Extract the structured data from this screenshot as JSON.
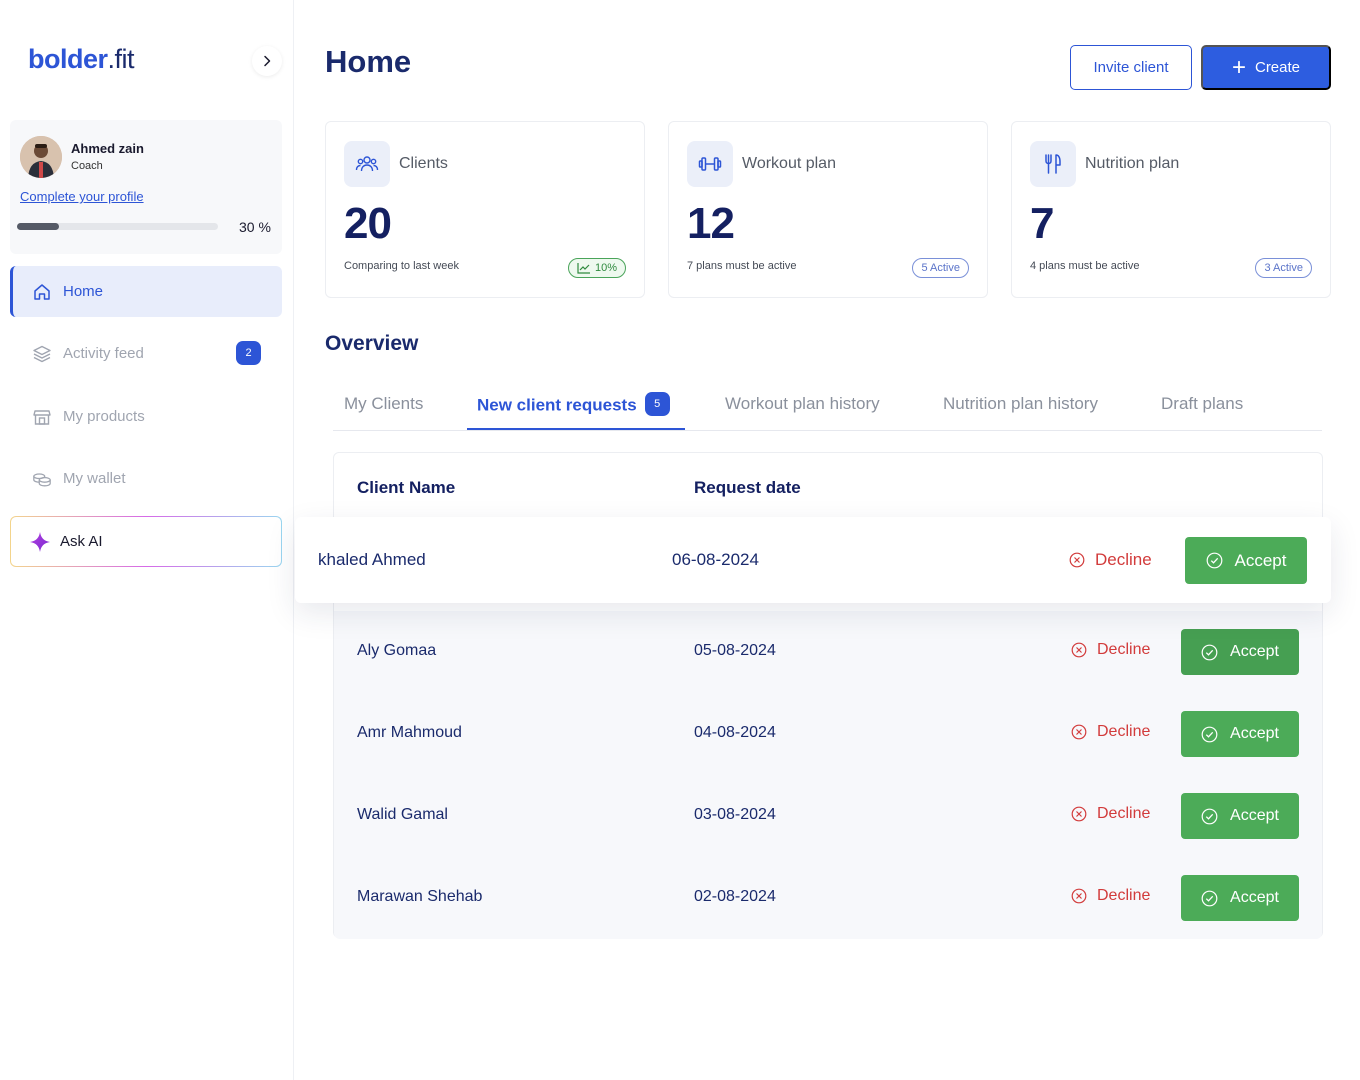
{
  "brand": {
    "name_bold": "bolder",
    "name_rest": ".fit"
  },
  "profile": {
    "name": "Ahmed zain",
    "role": "Coach",
    "complete_link": "Complete your profile",
    "progress_percent": 30,
    "progress_text": "30 %"
  },
  "sidebar": {
    "items": [
      {
        "label": "Home",
        "icon": "home-icon",
        "active": true
      },
      {
        "label": "Activity feed",
        "icon": "layers-icon",
        "badge": "2"
      },
      {
        "label": "My products",
        "icon": "store-icon"
      },
      {
        "label": "My wallet",
        "icon": "coins-icon"
      }
    ],
    "ask_ai": "Ask AI"
  },
  "header": {
    "title": "Home",
    "invite_label": "Invite client",
    "create_label": "Create"
  },
  "stats": [
    {
      "label": "Clients",
      "value": "20",
      "note": "Comparing to last week",
      "pill": "10%",
      "icon": "users-icon"
    },
    {
      "label": "Workout plan",
      "value": "12",
      "note": "7 plans must be active",
      "pill": "5 Active",
      "icon": "dumbbell-icon"
    },
    {
      "label": "Nutrition plan",
      "value": "7",
      "note": "4 plans must be active",
      "pill": "3 Active",
      "icon": "utensils-icon"
    }
  ],
  "overview": {
    "title": "Overview",
    "tabs": [
      {
        "label": "My Clients"
      },
      {
        "label": "New client requests",
        "badge": "5",
        "active": true
      },
      {
        "label": "Workout plan history"
      },
      {
        "label": "Nutrition plan history"
      },
      {
        "label": "Draft plans"
      }
    ],
    "table": {
      "headers": {
        "name": "Client Name",
        "date": "Request date"
      },
      "decline_label": "Decline",
      "accept_label": "Accept",
      "rows": [
        {
          "name": "khaled Ahmed",
          "date": "06-08-2024"
        },
        {
          "name": "Aly Gomaa",
          "date": "05-08-2024"
        },
        {
          "name": "Amr Mahmoud",
          "date": "04-08-2024"
        },
        {
          "name": "Walid Gamal",
          "date": "03-08-2024"
        },
        {
          "name": "Marawan Shehab",
          "date": "02-08-2024"
        }
      ]
    }
  },
  "colors": {
    "primary": "#2d55d6",
    "navy": "#142061",
    "success": "#4cab58",
    "danger": "#d23b3b"
  }
}
